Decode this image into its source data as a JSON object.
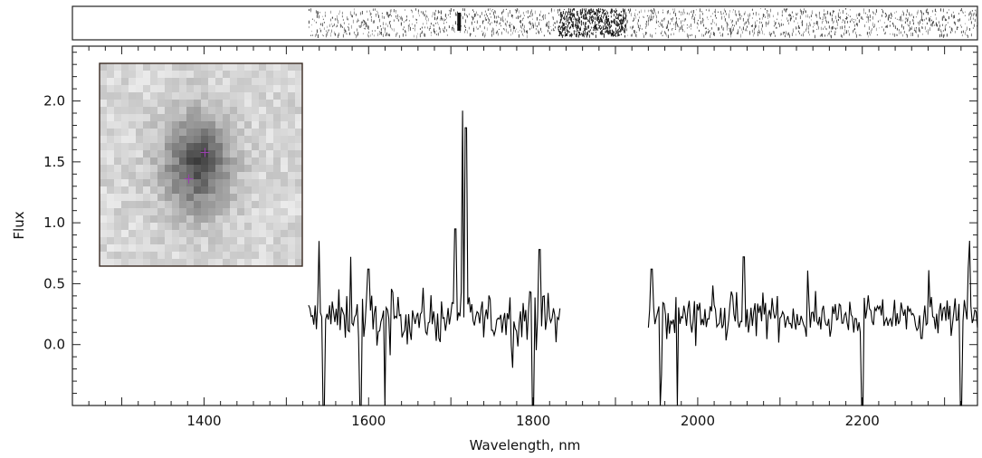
{
  "chart_data": {
    "type": "line",
    "title": "",
    "xlabel": "Wavelength, nm",
    "ylabel": "Flux",
    "xlim": [
      1240,
      2340
    ],
    "ylim": [
      -0.5,
      2.45
    ],
    "x_ticks": [
      1400,
      1600,
      1800,
      2000,
      2200
    ],
    "x_tick_labels": [
      "1400",
      "1600",
      "1800",
      "2000",
      "2200"
    ],
    "y_ticks": [
      0.0,
      0.5,
      1.0,
      1.5,
      2.0
    ],
    "y_tick_labels": [
      "0.0",
      "0.5",
      "1.0",
      "1.5",
      "2.0"
    ],
    "grid": false,
    "series": [
      {
        "segments": [
          {
            "x_range": [
              1527,
              1833
            ],
            "baseline": 0.22,
            "noise": 0.2,
            "features": [
              {
                "x": 1714,
                "y": 1.92
              },
              {
                "x": 1718,
                "y": 1.78
              },
              {
                "x": 1705,
                "y": 0.95
              },
              {
                "x": 1540,
                "y": 0.85
              },
              {
                "x": 1578,
                "y": 0.72
              },
              {
                "x": 1600,
                "y": 0.62
              },
              {
                "x": 1808,
                "y": 0.78
              },
              {
                "x": 1545,
                "y": -0.5
              },
              {
                "x": 1590,
                "y": -0.5
              },
              {
                "x": 1620,
                "y": -0.5
              },
              {
                "x": 1800,
                "y": -0.5
              }
            ]
          },
          {
            "x_range": [
              1940,
              2340
            ],
            "baseline": 0.23,
            "noise": 0.16,
            "features": [
              {
                "x": 1944,
                "y": 0.62
              },
              {
                "x": 2056,
                "y": 0.72
              },
              {
                "x": 2330,
                "y": 0.63
              },
              {
                "x": 1955,
                "y": -0.5
              },
              {
                "x": 1975,
                "y": -0.5
              },
              {
                "x": 2200,
                "y": -0.5
              },
              {
                "x": 2320,
                "y": -0.5
              }
            ]
          }
        ]
      }
    ],
    "spectrum_strip": {
      "x_range": [
        1527,
        2340
      ],
      "dense_region": [
        1830,
        1912
      ],
      "dark_spot_x": 1710
    },
    "inset": {
      "image": "galaxy-thumbnail",
      "markers": [
        {
          "type": "plus",
          "u": 0.52,
          "v": 0.44
        },
        {
          "type": "plus",
          "u": 0.44,
          "v": 0.57
        }
      ]
    }
  }
}
